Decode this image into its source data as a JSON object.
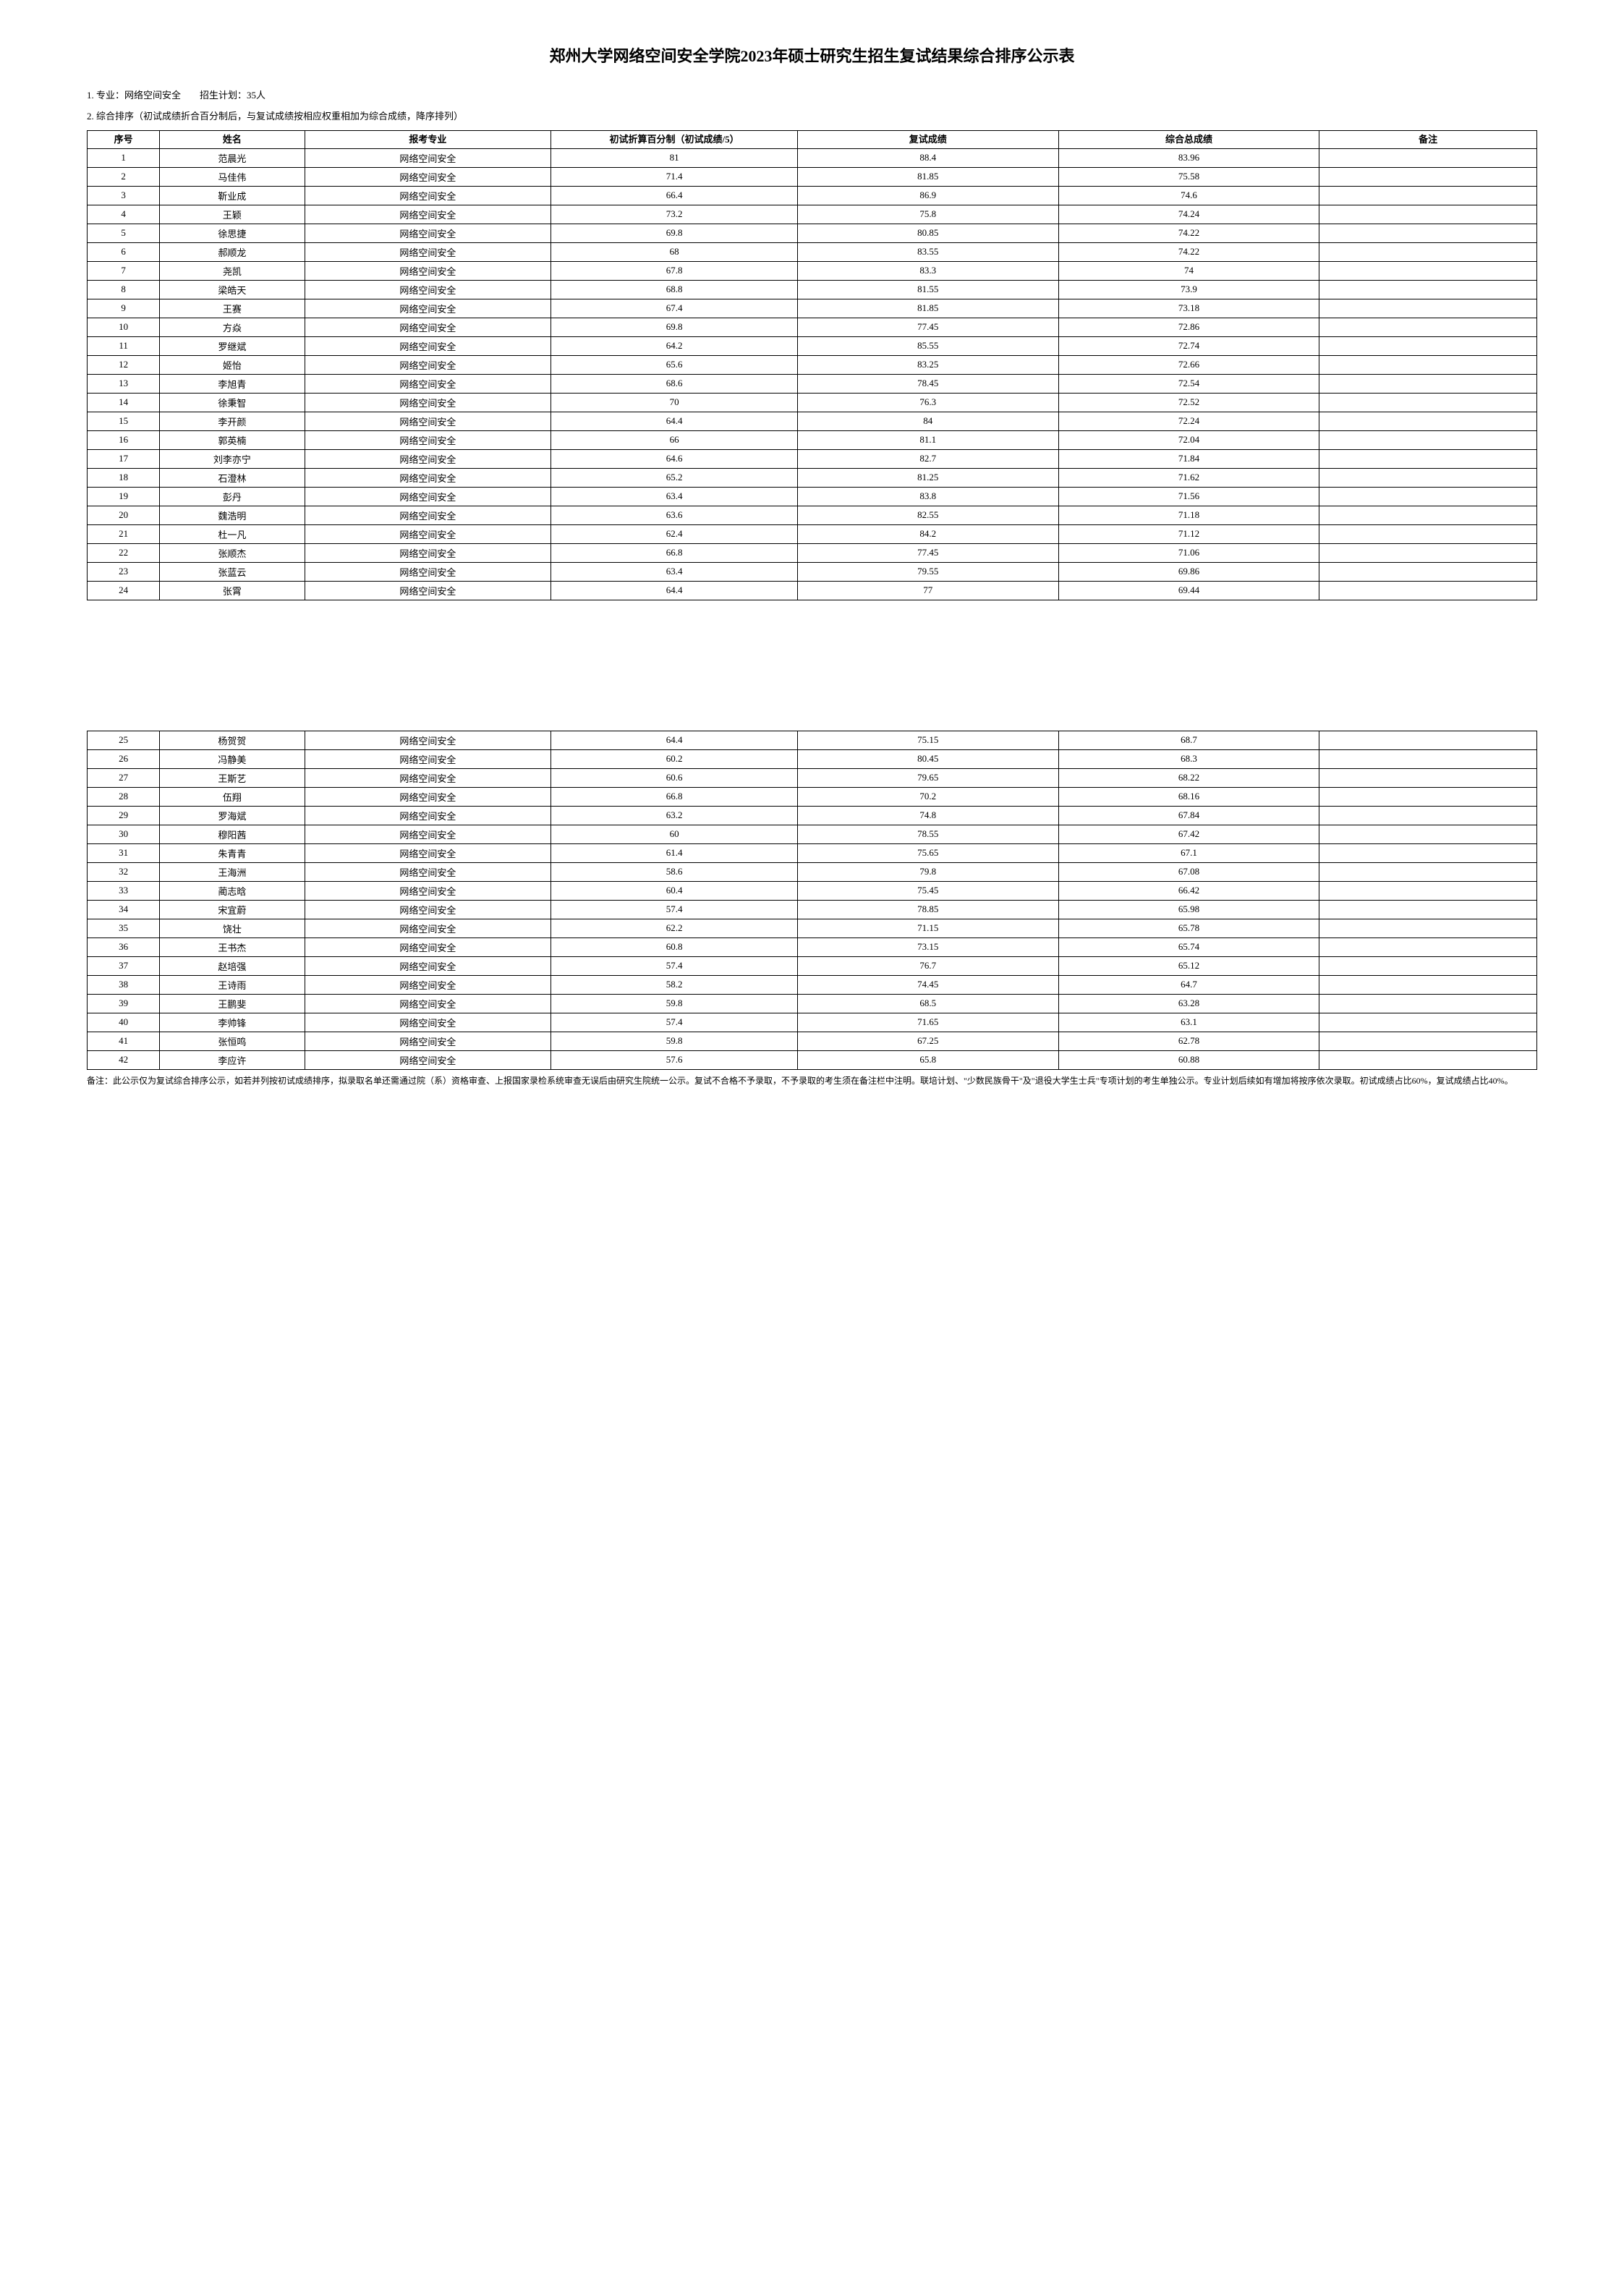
{
  "title": "郑州大学网络空间安全学院2023年硕士研究生招生复试结果综合排序公示表",
  "info_line1": "1. 专业：网络空间安全　　招生计划：35人",
  "info_line2": "2. 综合排序（初试成绩折合百分制后，与复试成绩按相应权重相加为综合成绩，降序排列）",
  "columns": {
    "idx": "序号",
    "name": "姓名",
    "major": "报考专业",
    "prelim": "初试折算百分制（初试成绩/5）",
    "retest": "复试成绩",
    "total": "综合总成绩",
    "note": "备注"
  },
  "major_value": "网络空间安全",
  "rows": [
    {
      "idx": "1",
      "name": "范晨光",
      "prelim": "81",
      "retest": "88.4",
      "total": "83.96",
      "note": ""
    },
    {
      "idx": "2",
      "name": "马佳伟",
      "prelim": "71.4",
      "retest": "81.85",
      "total": "75.58",
      "note": ""
    },
    {
      "idx": "3",
      "name": "靳业成",
      "prelim": "66.4",
      "retest": "86.9",
      "total": "74.6",
      "note": ""
    },
    {
      "idx": "4",
      "name": "王颖",
      "prelim": "73.2",
      "retest": "75.8",
      "total": "74.24",
      "note": ""
    },
    {
      "idx": "5",
      "name": "徐思捷",
      "prelim": "69.8",
      "retest": "80.85",
      "total": "74.22",
      "note": ""
    },
    {
      "idx": "6",
      "name": "郝顺龙",
      "prelim": "68",
      "retest": "83.55",
      "total": "74.22",
      "note": ""
    },
    {
      "idx": "7",
      "name": "尧凯",
      "prelim": "67.8",
      "retest": "83.3",
      "total": "74",
      "note": ""
    },
    {
      "idx": "8",
      "name": "梁皓天",
      "prelim": "68.8",
      "retest": "81.55",
      "total": "73.9",
      "note": ""
    },
    {
      "idx": "9",
      "name": "王赛",
      "prelim": "67.4",
      "retest": "81.85",
      "total": "73.18",
      "note": ""
    },
    {
      "idx": "10",
      "name": "方焱",
      "prelim": "69.8",
      "retest": "77.45",
      "total": "72.86",
      "note": ""
    },
    {
      "idx": "11",
      "name": "罗继斌",
      "prelim": "64.2",
      "retest": "85.55",
      "total": "72.74",
      "note": ""
    },
    {
      "idx": "12",
      "name": "姬怡",
      "prelim": "65.6",
      "retest": "83.25",
      "total": "72.66",
      "note": ""
    },
    {
      "idx": "13",
      "name": "李旭青",
      "prelim": "68.6",
      "retest": "78.45",
      "total": "72.54",
      "note": ""
    },
    {
      "idx": "14",
      "name": "徐秉智",
      "prelim": "70",
      "retest": "76.3",
      "total": "72.52",
      "note": ""
    },
    {
      "idx": "15",
      "name": "李开颜",
      "prelim": "64.4",
      "retest": "84",
      "total": "72.24",
      "note": ""
    },
    {
      "idx": "16",
      "name": "郭英楠",
      "prelim": "66",
      "retest": "81.1",
      "total": "72.04",
      "note": ""
    },
    {
      "idx": "17",
      "name": "刘李亦宁",
      "prelim": "64.6",
      "retest": "82.7",
      "total": "71.84",
      "note": ""
    },
    {
      "idx": "18",
      "name": "石澄林",
      "prelim": "65.2",
      "retest": "81.25",
      "total": "71.62",
      "note": ""
    },
    {
      "idx": "19",
      "name": "彭丹",
      "prelim": "63.4",
      "retest": "83.8",
      "total": "71.56",
      "note": ""
    },
    {
      "idx": "20",
      "name": "魏浩明",
      "prelim": "63.6",
      "retest": "82.55",
      "total": "71.18",
      "note": ""
    },
    {
      "idx": "21",
      "name": "杜一凡",
      "prelim": "62.4",
      "retest": "84.2",
      "total": "71.12",
      "note": ""
    },
    {
      "idx": "22",
      "name": "张顺杰",
      "prelim": "66.8",
      "retest": "77.45",
      "total": "71.06",
      "note": ""
    },
    {
      "idx": "23",
      "name": "张蓝云",
      "prelim": "63.4",
      "retest": "79.55",
      "total": "69.86",
      "note": ""
    },
    {
      "idx": "24",
      "name": "张霄",
      "prelim": "64.4",
      "retest": "77",
      "total": "69.44",
      "note": ""
    }
  ],
  "rows2": [
    {
      "idx": "25",
      "name": "杨贺贺",
      "prelim": "64.4",
      "retest": "75.15",
      "total": "68.7",
      "note": ""
    },
    {
      "idx": "26",
      "name": "冯静美",
      "prelim": "60.2",
      "retest": "80.45",
      "total": "68.3",
      "note": ""
    },
    {
      "idx": "27",
      "name": "王斯艺",
      "prelim": "60.6",
      "retest": "79.65",
      "total": "68.22",
      "note": ""
    },
    {
      "idx": "28",
      "name": "伍翔",
      "prelim": "66.8",
      "retest": "70.2",
      "total": "68.16",
      "note": ""
    },
    {
      "idx": "29",
      "name": "罗海斌",
      "prelim": "63.2",
      "retest": "74.8",
      "total": "67.84",
      "note": ""
    },
    {
      "idx": "30",
      "name": "穆阳茜",
      "prelim": "60",
      "retest": "78.55",
      "total": "67.42",
      "note": ""
    },
    {
      "idx": "31",
      "name": "朱青青",
      "prelim": "61.4",
      "retest": "75.65",
      "total": "67.1",
      "note": ""
    },
    {
      "idx": "32",
      "name": "王海洲",
      "prelim": "58.6",
      "retest": "79.8",
      "total": "67.08",
      "note": ""
    },
    {
      "idx": "33",
      "name": "蔺志晗",
      "prelim": "60.4",
      "retest": "75.45",
      "total": "66.42",
      "note": ""
    },
    {
      "idx": "34",
      "name": "宋宜蔚",
      "prelim": "57.4",
      "retest": "78.85",
      "total": "65.98",
      "note": ""
    },
    {
      "idx": "35",
      "name": "饶壮",
      "prelim": "62.2",
      "retest": "71.15",
      "total": "65.78",
      "note": ""
    },
    {
      "idx": "36",
      "name": "王书杰",
      "prelim": "60.8",
      "retest": "73.15",
      "total": "65.74",
      "note": ""
    },
    {
      "idx": "37",
      "name": "赵培强",
      "prelim": "57.4",
      "retest": "76.7",
      "total": "65.12",
      "note": ""
    },
    {
      "idx": "38",
      "name": "王诗雨",
      "prelim": "58.2",
      "retest": "74.45",
      "total": "64.7",
      "note": ""
    },
    {
      "idx": "39",
      "name": "王鹏斐",
      "prelim": "59.8",
      "retest": "68.5",
      "total": "63.28",
      "note": ""
    },
    {
      "idx": "40",
      "name": "李帅锋",
      "prelim": "57.4",
      "retest": "71.65",
      "total": "63.1",
      "note": ""
    },
    {
      "idx": "41",
      "name": "张恒鸣",
      "prelim": "59.8",
      "retest": "67.25",
      "total": "62.78",
      "note": ""
    },
    {
      "idx": "42",
      "name": "李应许",
      "prelim": "57.6",
      "retest": "65.8",
      "total": "60.88",
      "note": ""
    }
  ],
  "footnote": "备注：此公示仅为复试综合排序公示，如若并列按初试成绩排序，拟录取名单还需通过院（系）资格审查、上报国家录检系统审查无误后由研究生院统一公示。复试不合格不予录取，不予录取的考生须在备注栏中注明。联培计划、\"少数民族骨干\"及\"退役大学生士兵\"专项计划的考生单独公示。专业计划后续如有增加将按序依次录取。初试成绩占比60%，复试成绩占比40%。",
  "styling": {
    "background_color": "#ffffff",
    "border_color": "#000000",
    "title_fontsize": 22,
    "body_fontsize": 13,
    "footnote_fontsize": 12,
    "font_family": "SimSun"
  }
}
